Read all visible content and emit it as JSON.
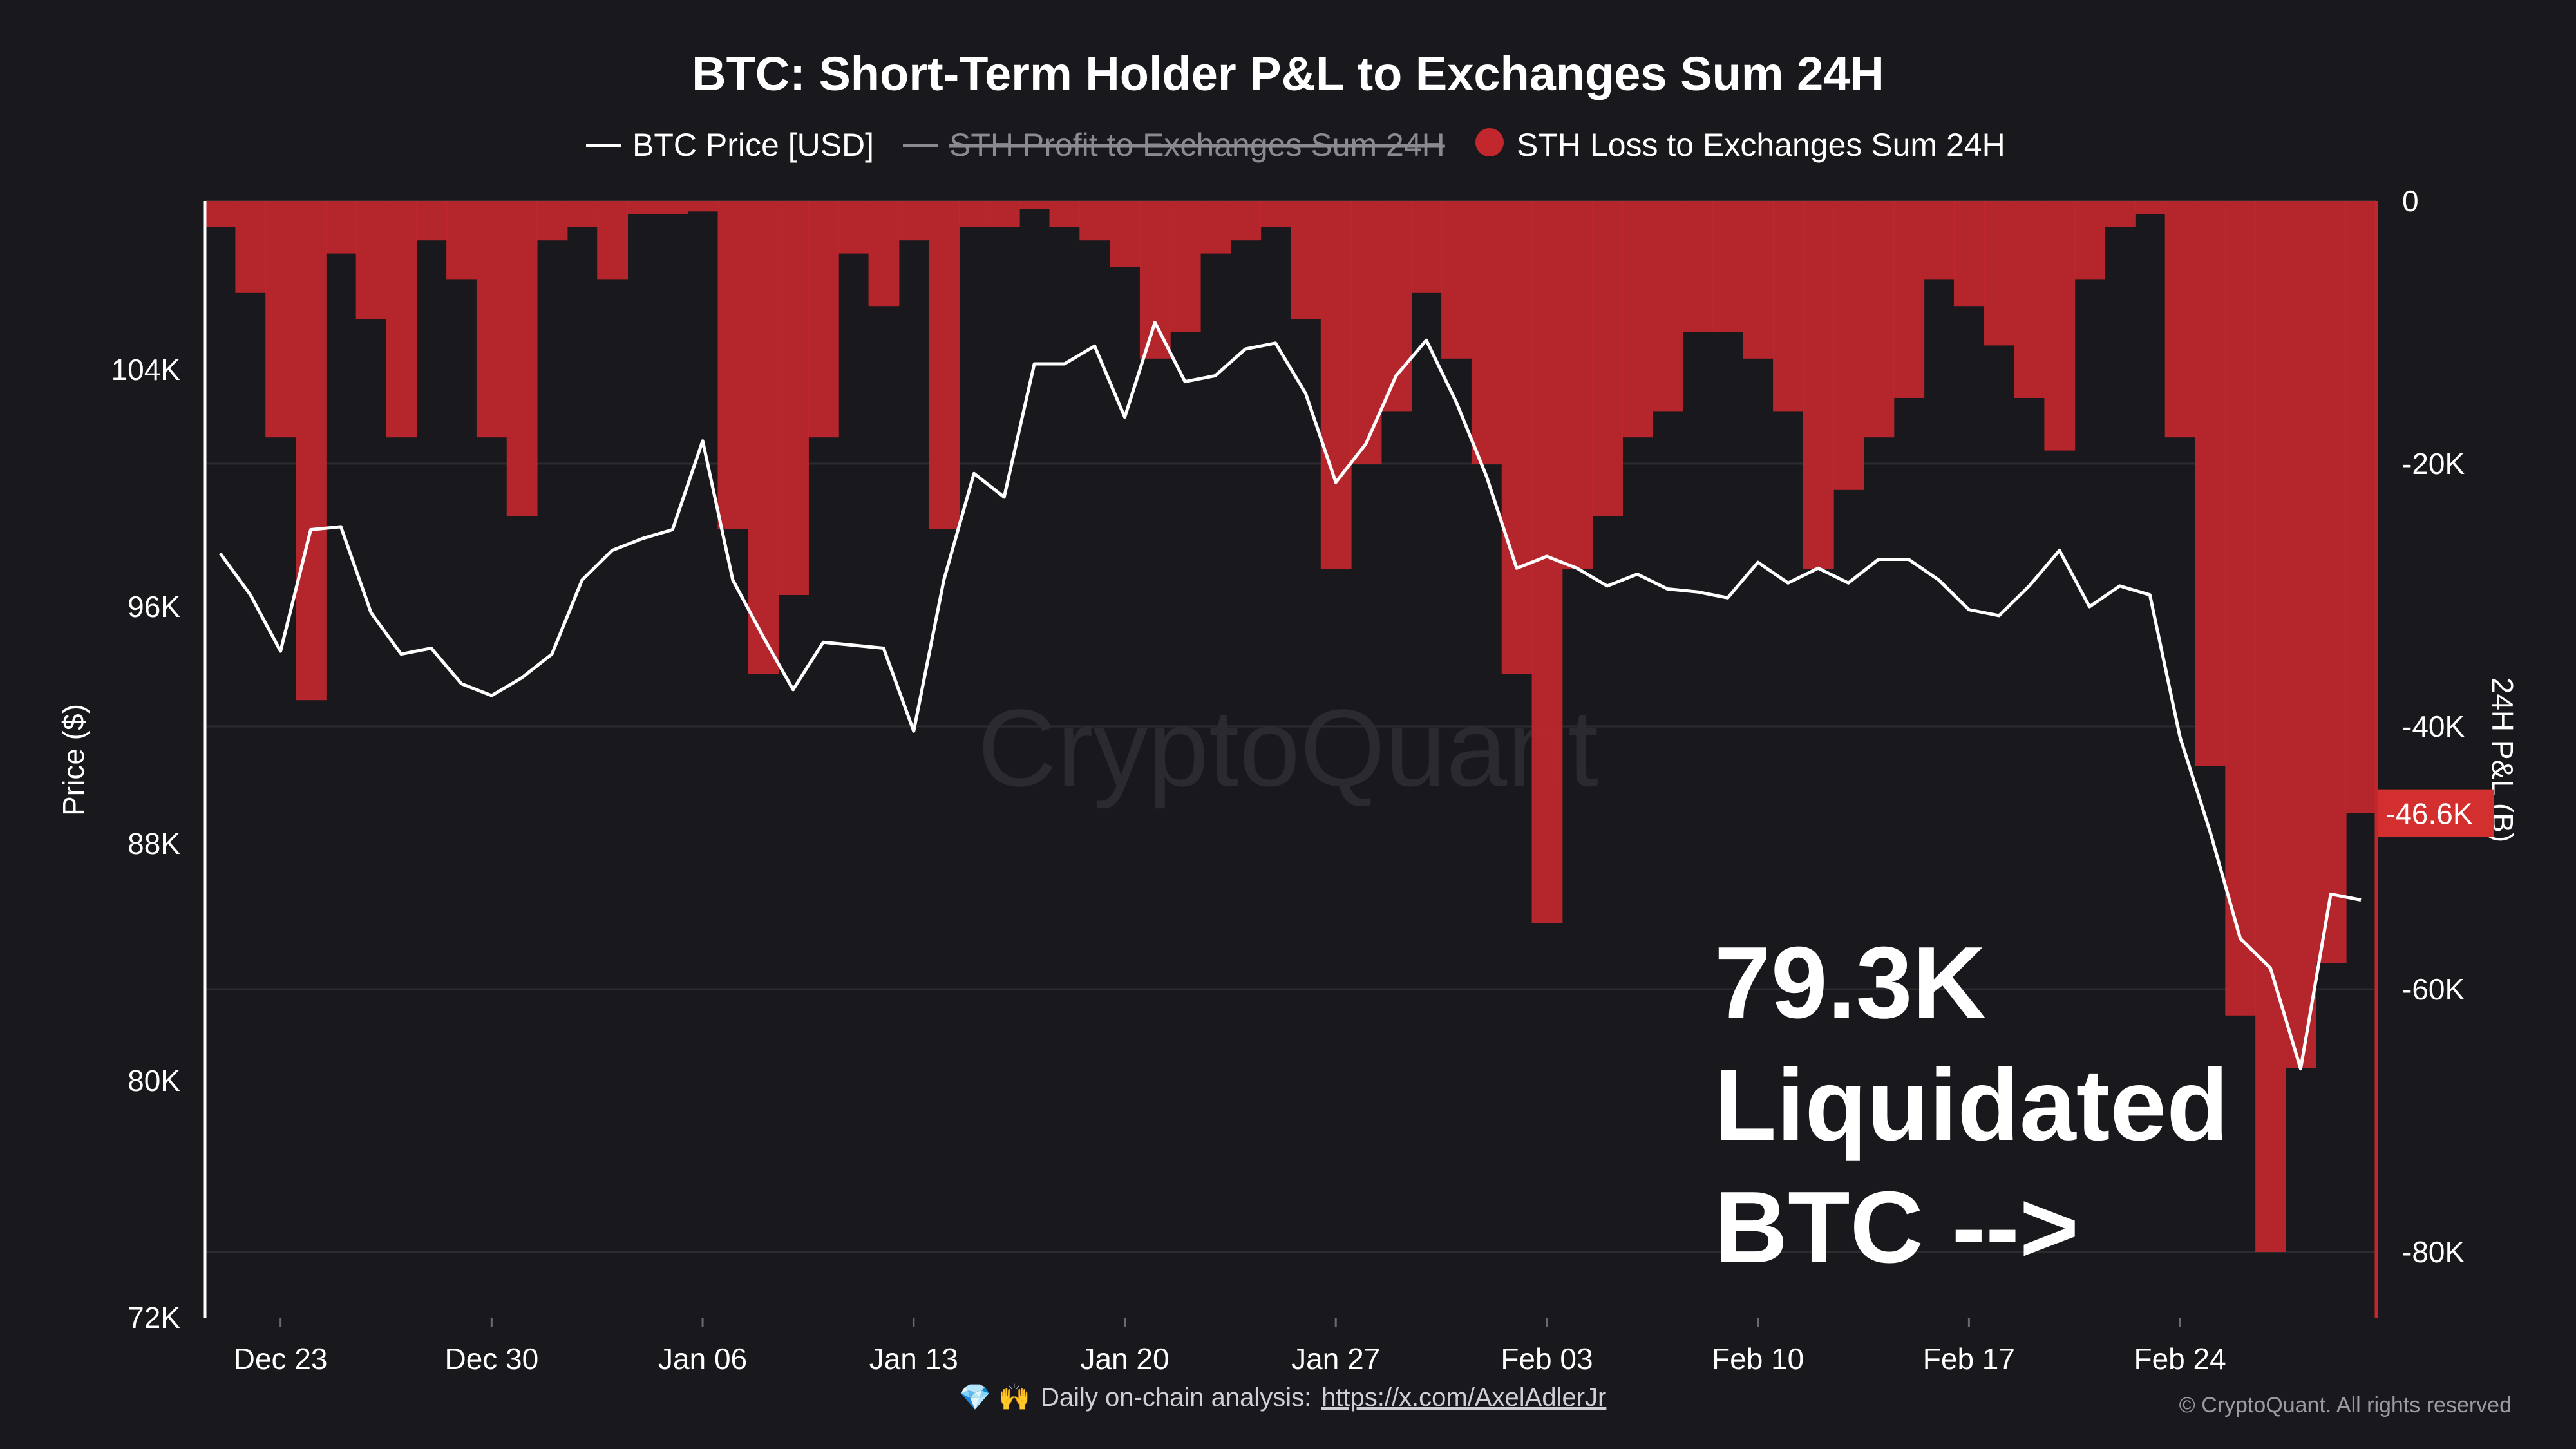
{
  "chart_data": {
    "type": "line",
    "title": "BTC: Short-Term Holder P&L to Exchanges Sum 24H",
    "legend": {
      "placement": "top-center",
      "items": [
        {
          "label": "BTC Price [USD]",
          "marker": "line",
          "color": "#ffffff",
          "visible": true
        },
        {
          "label": "STH Profit to Exchanges Sum 24H",
          "marker": "line",
          "color": "#8a8a8f",
          "visible": false
        },
        {
          "label": "STH Loss to Exchanges Sum 24H",
          "marker": "dot",
          "color": "#c1272d",
          "visible": true
        }
      ]
    },
    "x_ticks": [
      "Dec 23",
      "Dec 30",
      "Jan 06",
      "Jan 13",
      "Jan 20",
      "Jan 27",
      "Feb 03",
      "Feb 10",
      "Feb 17",
      "Feb 24"
    ],
    "y_left": {
      "label": "Price ($)",
      "ticks": [
        "104K",
        "96K",
        "88K",
        "80K",
        "72K"
      ],
      "tick_values": [
        104000,
        96000,
        88000,
        80000,
        72000
      ],
      "range": [
        72000,
        109700
      ]
    },
    "y_right": {
      "label": "24H P&L (B)",
      "ticks": [
        "0",
        "-20K",
        "-40K",
        "-60K",
        "-80K"
      ],
      "tick_values": [
        0,
        -20000,
        -40000,
        -60000,
        -80000
      ],
      "range": [
        -85000,
        0
      ]
    },
    "current_badge": "-46.6K",
    "grid": true,
    "series": [
      {
        "name": "BTC Price [USD]",
        "axis": "left",
        "color": "#ffffff",
        "x": [
          "2024-12-21",
          "2024-12-22",
          "2024-12-23",
          "2024-12-24",
          "2024-12-25",
          "2024-12-26",
          "2024-12-27",
          "2024-12-28",
          "2024-12-29",
          "2024-12-30",
          "2024-12-31",
          "2025-01-01",
          "2025-01-02",
          "2025-01-03",
          "2025-01-04",
          "2025-01-05",
          "2025-01-06",
          "2025-01-07",
          "2025-01-08",
          "2025-01-09",
          "2025-01-10",
          "2025-01-11",
          "2025-01-12",
          "2025-01-13",
          "2025-01-14",
          "2025-01-15",
          "2025-01-16",
          "2025-01-17",
          "2025-01-18",
          "2025-01-19",
          "2025-01-20",
          "2025-01-21",
          "2025-01-22",
          "2025-01-23",
          "2025-01-24",
          "2025-01-25",
          "2025-01-26",
          "2025-01-27",
          "2025-01-28",
          "2025-01-29",
          "2025-01-30",
          "2025-01-31",
          "2025-02-01",
          "2025-02-02",
          "2025-02-03",
          "2025-02-04",
          "2025-02-05",
          "2025-02-06",
          "2025-02-07",
          "2025-02-08",
          "2025-02-09",
          "2025-02-10",
          "2025-02-11",
          "2025-02-12",
          "2025-02-13",
          "2025-02-14",
          "2025-02-15",
          "2025-02-16",
          "2025-02-17",
          "2025-02-18",
          "2025-02-19",
          "2025-02-20",
          "2025-02-21",
          "2025-02-22",
          "2025-02-23",
          "2025-02-24",
          "2025-02-25",
          "2025-02-26",
          "2025-02-27",
          "2025-02-28",
          "2025-03-01",
          "2025-03-02"
        ],
        "values": [
          97800,
          96400,
          94500,
          98600,
          98700,
          95800,
          94400,
          94600,
          93400,
          93000,
          93600,
          94400,
          96900,
          97900,
          98300,
          98600,
          101600,
          96900,
          95000,
          93200,
          94800,
          94700,
          94600,
          91800,
          96900,
          100500,
          99700,
          104200,
          104200,
          104800,
          102400,
          105600,
          103600,
          103800,
          104700,
          104900,
          103200,
          100200,
          101500,
          103800,
          105000,
          102900,
          100400,
          97300,
          97700,
          97300,
          96700,
          97100,
          96600,
          96500,
          96300,
          97500,
          96800,
          97300,
          96800,
          97600,
          97600,
          96900,
          95900,
          95700,
          96700,
          97900,
          96000,
          96700,
          96400,
          91600,
          88400,
          84800,
          83800,
          80400,
          86300,
          86100
        ]
      },
      {
        "name": "STH Loss to Exchanges Sum 24H",
        "axis": "right",
        "color": "#c1272d",
        "x": [
          "2024-12-21",
          "2024-12-22",
          "2024-12-23",
          "2024-12-24",
          "2024-12-25",
          "2024-12-26",
          "2024-12-27",
          "2024-12-28",
          "2024-12-29",
          "2024-12-30",
          "2024-12-31",
          "2025-01-01",
          "2025-01-02",
          "2025-01-03",
          "2025-01-04",
          "2025-01-05",
          "2025-01-06",
          "2025-01-07",
          "2025-01-08",
          "2025-01-09",
          "2025-01-10",
          "2025-01-11",
          "2025-01-12",
          "2025-01-13",
          "2025-01-14",
          "2025-01-15",
          "2025-01-16",
          "2025-01-17",
          "2025-01-18",
          "2025-01-19",
          "2025-01-20",
          "2025-01-21",
          "2025-01-22",
          "2025-01-23",
          "2025-01-24",
          "2025-01-25",
          "2025-01-26",
          "2025-01-27",
          "2025-01-28",
          "2025-01-29",
          "2025-01-30",
          "2025-01-31",
          "2025-02-01",
          "2025-02-02",
          "2025-02-03",
          "2025-02-04",
          "2025-02-05",
          "2025-02-06",
          "2025-02-07",
          "2025-02-08",
          "2025-02-09",
          "2025-02-10",
          "2025-02-11",
          "2025-02-12",
          "2025-02-13",
          "2025-02-14",
          "2025-02-15",
          "2025-02-16",
          "2025-02-17",
          "2025-02-18",
          "2025-02-19",
          "2025-02-20",
          "2025-02-21",
          "2025-02-22",
          "2025-02-23",
          "2025-02-24",
          "2025-02-25",
          "2025-02-26",
          "2025-02-27",
          "2025-02-28",
          "2025-03-01",
          "2025-03-02"
        ],
        "values": [
          -2000,
          -7000,
          -18000,
          -38000,
          -4000,
          -9000,
          -18000,
          -3000,
          -6000,
          -18000,
          -24000,
          -3000,
          -2000,
          -6000,
          -1000,
          -1000,
          -800,
          -25000,
          -36000,
          -30000,
          -18000,
          -4000,
          -8000,
          -3000,
          -25000,
          -2000,
          -2000,
          -600,
          -2000,
          -3000,
          -5000,
          -12000,
          -10000,
          -4000,
          -3000,
          -2000,
          -9000,
          -28000,
          -20000,
          -16000,
          -7000,
          -12000,
          -20000,
          -36000,
          -55000,
          -28000,
          -24000,
          -18000,
          -16000,
          -10000,
          -10000,
          -12000,
          -16000,
          -28000,
          -22000,
          -18000,
          -15000,
          -6000,
          -8000,
          -11000,
          -15000,
          -19000,
          -6000,
          -2000,
          -1000,
          -18000,
          -43000,
          -62000,
          -80000,
          -66000,
          -58000,
          -46600
        ]
      }
    ]
  },
  "annotation": {
    "lines": [
      "79.3K",
      "Liquidated",
      "BTC -->"
    ]
  },
  "watermark": "CryptoQuant",
  "footer": {
    "emoji": "💎 🙌",
    "prefix": "Daily on-chain analysis:",
    "link": "https://x.com/AxelAdlerJr",
    "copyright": "© CryptoQuant. All rights reserved"
  },
  "colors": {
    "background": "#19191d",
    "loss": "#c1272d",
    "price": "#ffffff",
    "badge": "#d32f2f",
    "grid": "#2b2b30"
  }
}
